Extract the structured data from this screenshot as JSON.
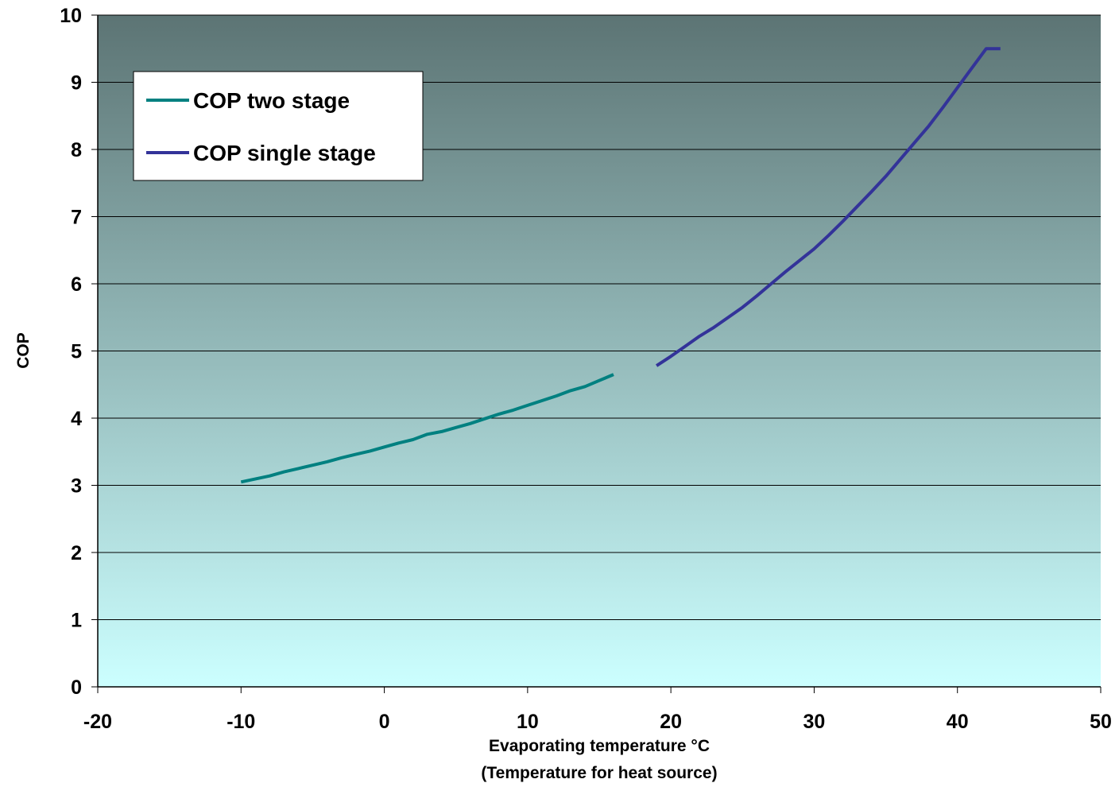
{
  "chart_data": {
    "type": "line",
    "xlabel": "Evaporating temperature °C",
    "xlabel_line2": "(Temperature for heat source)",
    "ylabel": "COP",
    "xlim": [
      -20,
      50
    ],
    "ylim": [
      0,
      10
    ],
    "x_ticks": [
      "-20",
      "-10",
      "0",
      "10",
      "20",
      "30",
      "40",
      "50"
    ],
    "y_ticks": [
      "0",
      "1",
      "2",
      "3",
      "4",
      "5",
      "6",
      "7",
      "8",
      "9",
      "10"
    ],
    "grid": "horizontal",
    "legend_position": "top-left",
    "background_gradient": [
      "#5c7474",
      "#ccffff"
    ],
    "series": [
      {
        "name": "COP two stage",
        "color": "#008080",
        "x": [
          -10,
          -8,
          -7,
          -6,
          -5,
          -4,
          -3,
          -2,
          -1,
          0,
          1,
          2,
          3,
          4,
          5,
          6,
          7,
          8,
          9,
          10,
          11,
          12,
          13,
          14,
          15,
          16
        ],
        "y": [
          3.05,
          3.14,
          3.2,
          3.25,
          3.3,
          3.35,
          3.41,
          3.46,
          3.51,
          3.57,
          3.63,
          3.68,
          3.76,
          3.8,
          3.86,
          3.92,
          3.99,
          4.06,
          4.12,
          4.19,
          4.26,
          4.33,
          4.41,
          4.47,
          4.56,
          4.65
        ]
      },
      {
        "name": "COP single stage",
        "color": "#333399",
        "x": [
          19,
          20,
          21,
          22,
          23,
          24,
          25,
          26,
          27,
          28,
          29,
          30,
          31,
          32,
          33,
          34,
          35,
          36,
          37,
          38,
          39,
          40,
          41,
          42,
          43
        ],
        "y": [
          4.78,
          4.92,
          5.07,
          5.22,
          5.35,
          5.5,
          5.65,
          5.82,
          6.0,
          6.18,
          6.35,
          6.52,
          6.72,
          6.93,
          7.15,
          7.37,
          7.6,
          7.85,
          8.1,
          8.35,
          8.63,
          8.92,
          9.21,
          9.5,
          9.5
        ]
      }
    ]
  }
}
